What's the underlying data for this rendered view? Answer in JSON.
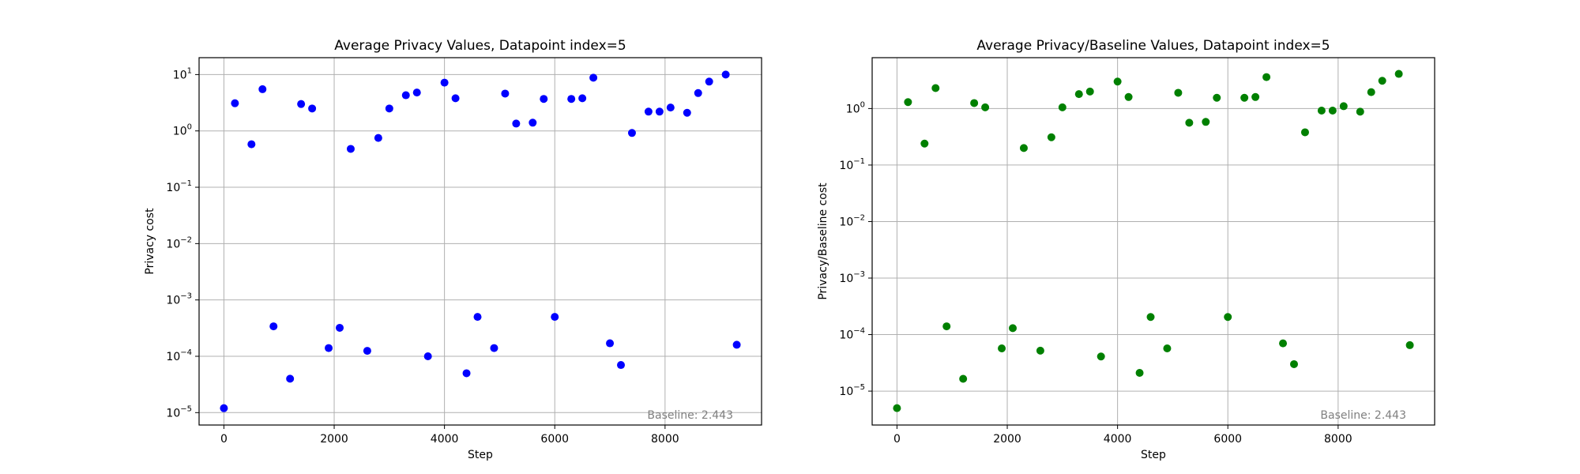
{
  "chart_data": [
    {
      "type": "scatter",
      "title": "Average Privacy Values, Datapoint index=5",
      "xlabel": "Step",
      "ylabel": "Privacy cost",
      "yscale": "log",
      "xlim": [
        -450,
        9750
      ],
      "ylim_exp": [
        -5.22,
        1.3
      ],
      "xticks": [
        0,
        2000,
        4000,
        6000,
        8000
      ],
      "xtick_labels": [
        "0",
        "2000",
        "4000",
        "6000",
        "8000"
      ],
      "yticks_exp": [
        -5,
        -4,
        -3,
        -2,
        -1,
        0,
        1
      ],
      "ytick_labels": [
        "10",
        "10",
        "10",
        "10",
        "10",
        "10",
        "10"
      ],
      "ytick_sups": [
        "−5",
        "−4",
        "−3",
        "−2",
        "−1",
        "0",
        "1"
      ],
      "grid": true,
      "color": "#0000ff",
      "annotation": "Baseline: 2.443",
      "points": [
        [
          0,
          1.2e-05
        ],
        [
          200,
          3.1
        ],
        [
          500,
          0.58
        ],
        [
          700,
          5.5
        ],
        [
          900,
          0.00034
        ],
        [
          1200,
          4e-05
        ],
        [
          1400,
          3.0
        ],
        [
          1600,
          2.5
        ],
        [
          1900,
          0.00014
        ],
        [
          2100,
          0.00032
        ],
        [
          2300,
          0.48
        ],
        [
          2600,
          0.000125
        ],
        [
          2800,
          0.75
        ],
        [
          3000,
          2.5
        ],
        [
          3300,
          4.3
        ],
        [
          3500,
          4.8
        ],
        [
          3700,
          0.0001
        ],
        [
          4000,
          7.2
        ],
        [
          4200,
          3.8
        ],
        [
          4400,
          5e-05
        ],
        [
          4600,
          0.0005
        ],
        [
          4900,
          0.00014
        ],
        [
          5100,
          4.6
        ],
        [
          5300,
          1.35
        ],
        [
          5600,
          1.4
        ],
        [
          5800,
          3.7
        ],
        [
          6000,
          0.0005
        ],
        [
          6300,
          3.7
        ],
        [
          6500,
          3.8
        ],
        [
          6700,
          8.8
        ],
        [
          7000,
          0.00017
        ],
        [
          7200,
          7e-05
        ],
        [
          7400,
          0.92
        ],
        [
          7700,
          2.2
        ],
        [
          7900,
          2.2
        ],
        [
          8100,
          2.6
        ],
        [
          8400,
          2.1
        ],
        [
          8600,
          4.7
        ],
        [
          8800,
          7.5
        ],
        [
          9100,
          10
        ],
        [
          9300,
          0.00016
        ]
      ]
    },
    {
      "type": "scatter",
      "title": "Average Privacy/Baseline Values, Datapoint index=5",
      "xlabel": "Step",
      "ylabel": "Privacy/Baseline cost",
      "yscale": "log",
      "xlim": [
        -450,
        9750
      ],
      "ylim_exp": [
        -5.6,
        0.9
      ],
      "xticks": [
        0,
        2000,
        4000,
        6000,
        8000
      ],
      "xtick_labels": [
        "0",
        "2000",
        "4000",
        "6000",
        "8000"
      ],
      "yticks_exp": [
        -5,
        -4,
        -3,
        -2,
        -1,
        0
      ],
      "ytick_labels": [
        "10",
        "10",
        "10",
        "10",
        "10",
        "10"
      ],
      "ytick_sups": [
        "−5",
        "−4",
        "−3",
        "−2",
        "−1",
        "0"
      ],
      "grid": true,
      "color": "#008000",
      "annotation": "Baseline: 2.443",
      "points": [
        [
          0,
          5e-06
        ],
        [
          200,
          1.3
        ],
        [
          500,
          0.24
        ],
        [
          700,
          2.3
        ],
        [
          900,
          0.00014
        ],
        [
          1200,
          1.65e-05
        ],
        [
          1400,
          1.25
        ],
        [
          1600,
          1.05
        ],
        [
          1900,
          5.7e-05
        ],
        [
          2100,
          0.00013
        ],
        [
          2300,
          0.2
        ],
        [
          2600,
          5.2e-05
        ],
        [
          2800,
          0.31
        ],
        [
          3000,
          1.05
        ],
        [
          3300,
          1.8
        ],
        [
          3500,
          2.0
        ],
        [
          3700,
          4.1e-05
        ],
        [
          4000,
          3.0
        ],
        [
          4200,
          1.6
        ],
        [
          4400,
          2.1e-05
        ],
        [
          4600,
          0.000205
        ],
        [
          4900,
          5.7e-05
        ],
        [
          5100,
          1.9
        ],
        [
          5300,
          0.56
        ],
        [
          5600,
          0.58
        ],
        [
          5800,
          1.55
        ],
        [
          6000,
          0.000205
        ],
        [
          6300,
          1.55
        ],
        [
          6500,
          1.6
        ],
        [
          6700,
          3.6
        ],
        [
          7000,
          7e-05
        ],
        [
          7200,
          3e-05
        ],
        [
          7400,
          0.38
        ],
        [
          7700,
          0.92
        ],
        [
          7900,
          0.92
        ],
        [
          8100,
          1.1
        ],
        [
          8400,
          0.88
        ],
        [
          8600,
          1.95
        ],
        [
          8800,
          3.1
        ],
        [
          9100,
          4.1
        ],
        [
          9300,
          6.5e-05
        ]
      ]
    }
  ]
}
